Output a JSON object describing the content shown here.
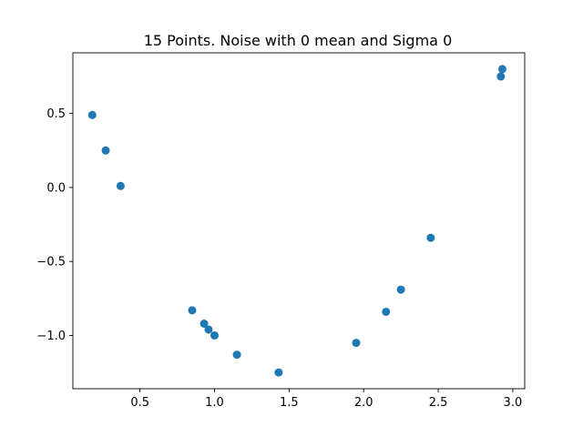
{
  "chart_data": {
    "type": "scatter",
    "title": "15 Points. Noise with 0 mean and Sigma 0",
    "xlabel": "",
    "ylabel": "",
    "xlim": [
      0.05,
      3.08
    ],
    "ylim": [
      -1.36,
      0.91
    ],
    "x_ticks": [
      {
        "value": 0.5,
        "label": "0.5"
      },
      {
        "value": 1.0,
        "label": "1.0"
      },
      {
        "value": 1.5,
        "label": "1.5"
      },
      {
        "value": 2.0,
        "label": "2.0"
      },
      {
        "value": 2.5,
        "label": "2.5"
      },
      {
        "value": 3.0,
        "label": "3.0"
      }
    ],
    "y_ticks": [
      {
        "value": 0.5,
        "label": "0.5"
      },
      {
        "value": 0.0,
        "label": "0.0"
      },
      {
        "value": -0.5,
        "label": "−0.5"
      },
      {
        "value": -1.0,
        "label": "−1.0"
      }
    ],
    "grid": false,
    "legend": "none",
    "series": [
      {
        "color": "#1f77b4",
        "x": [
          0.18,
          0.27,
          0.37,
          0.85,
          0.93,
          0.96,
          1.0,
          1.15,
          1.43,
          1.95,
          2.15,
          2.25,
          2.45,
          2.92,
          2.93
        ],
        "y": [
          0.49,
          0.25,
          0.01,
          -0.83,
          -0.92,
          -0.96,
          -1.0,
          -1.13,
          -1.25,
          -1.05,
          -0.84,
          -0.69,
          -0.34,
          0.75,
          0.8
        ]
      }
    ]
  }
}
